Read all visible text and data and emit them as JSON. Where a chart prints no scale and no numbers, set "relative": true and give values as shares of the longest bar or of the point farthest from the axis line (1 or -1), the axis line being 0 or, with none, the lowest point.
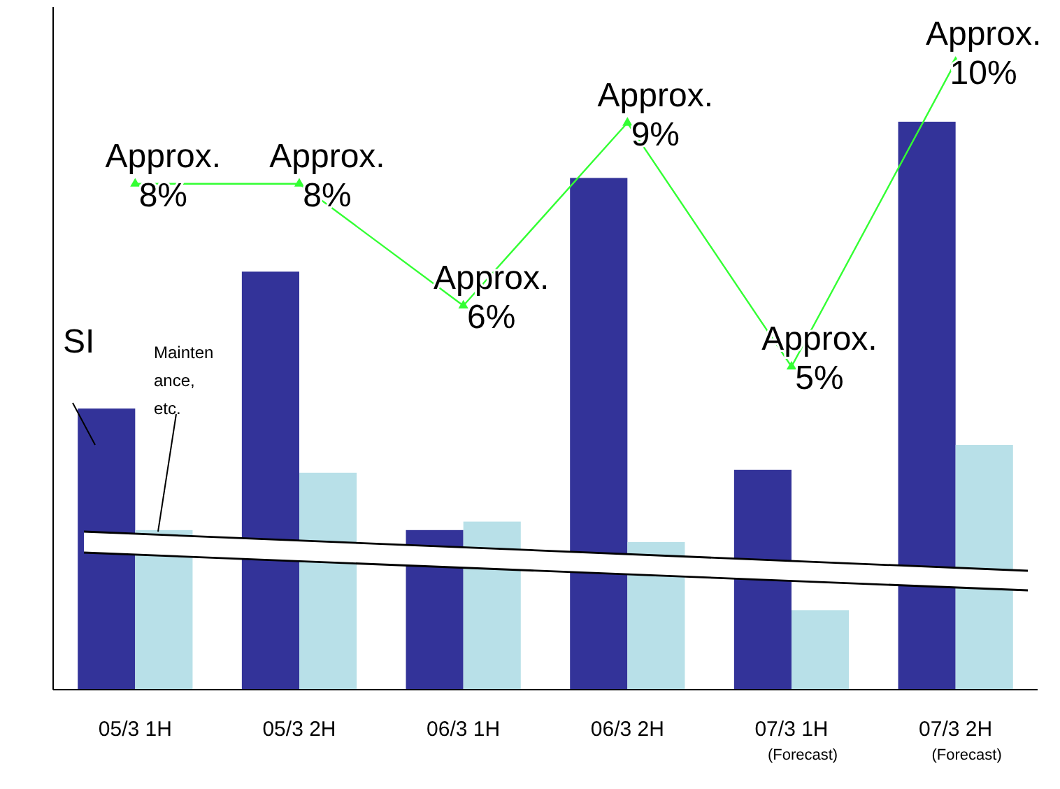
{
  "chart_data": [
    {
      "type": "bar",
      "relative": true,
      "categories": [
        "05/3 1H",
        "05/3 2H",
        "06/3 1H",
        "06/3 2H",
        "07/3 1H (Forecast)",
        "07/3 2H (Forecast)"
      ],
      "series": [
        {
          "name": "SI",
          "color": "#333399",
          "values": [
            0.495,
            0.736,
            0.281,
            0.901,
            0.387,
            1
          ]
        },
        {
          "name": "Maintenance, etc.",
          "color": "#b8e0e8",
          "values": [
            0.281,
            0.382,
            0.296,
            0.26,
            0.14,
            0.431
          ]
        }
      ]
    },
    {
      "type": "line",
      "categories": [
        null,
        null,
        null,
        null,
        null,
        null
      ],
      "marker": "triangle",
      "series": [
        {
          "color": "#33ff33",
          "values": [
            8,
            8,
            6,
            9,
            5,
            10
          ],
          "value_labels": [
            "Approx. 8%",
            "Approx. 8%",
            "Approx. 6%",
            "Approx. 9%",
            "Approx. 5%",
            "Approx. 10%"
          ]
        }
      ],
      "ylim": [
        -0.3,
        10.9
      ]
    }
  ]
}
